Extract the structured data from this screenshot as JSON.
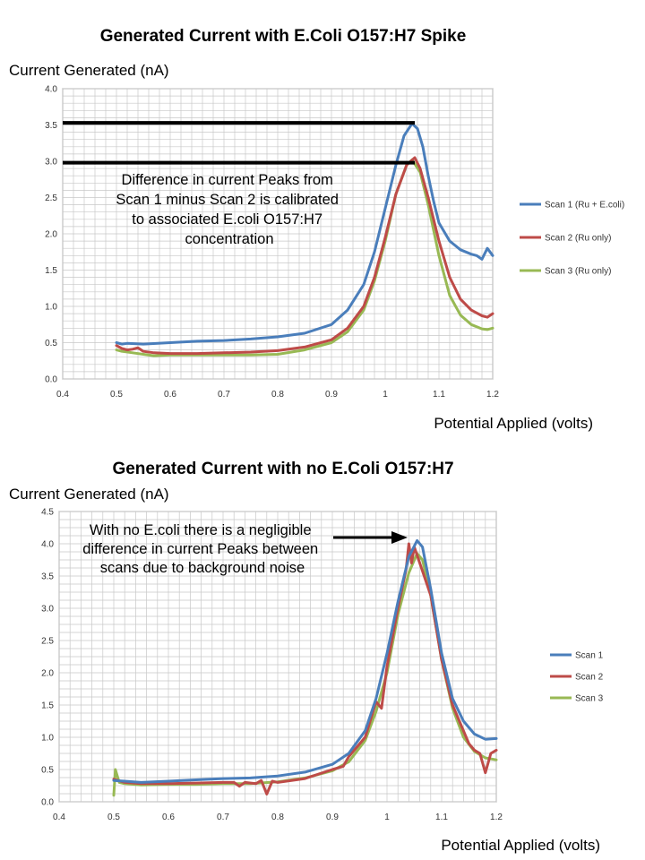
{
  "chart_data": [
    {
      "type": "line",
      "title": "Generated Current with E.Coli O157:H7 Spike",
      "ylabel": "Current Generated (nA)",
      "xlabel": "Potential Applied (volts)",
      "xlim": [
        0.4,
        1.2
      ],
      "ylim": [
        0,
        4.0
      ],
      "x_ticks": [
        "0.4",
        "0.5",
        "0.6",
        "0.7",
        "0.8",
        "0.9",
        "1",
        "1.1",
        "1.2"
      ],
      "y_ticks": [
        "0.0",
        "0.5",
        "1.0",
        "1.5",
        "2.0",
        "2.5",
        "3.0",
        "3.5",
        "4.0"
      ],
      "grid": true,
      "legend_position": "right",
      "series": [
        {
          "name": "Scan 1 (Ru + E.coli)",
          "color": "#4A7EBB",
          "points": [
            [
              0.5,
              0.5
            ],
            [
              0.51,
              0.48
            ],
            [
              0.52,
              0.49
            ],
            [
              0.55,
              0.48
            ],
            [
              0.6,
              0.5
            ],
            [
              0.65,
              0.52
            ],
            [
              0.7,
              0.53
            ],
            [
              0.75,
              0.55
            ],
            [
              0.8,
              0.58
            ],
            [
              0.85,
              0.63
            ],
            [
              0.9,
              0.75
            ],
            [
              0.93,
              0.95
            ],
            [
              0.96,
              1.3
            ],
            [
              0.98,
              1.75
            ],
            [
              1.0,
              2.35
            ],
            [
              1.02,
              2.95
            ],
            [
              1.035,
              3.35
            ],
            [
              1.05,
              3.52
            ],
            [
              1.06,
              3.45
            ],
            [
              1.07,
              3.2
            ],
            [
              1.08,
              2.8
            ],
            [
              1.09,
              2.45
            ],
            [
              1.1,
              2.15
            ],
            [
              1.12,
              1.9
            ],
            [
              1.14,
              1.78
            ],
            [
              1.16,
              1.72
            ],
            [
              1.17,
              1.7
            ],
            [
              1.18,
              1.65
            ],
            [
              1.19,
              1.8
            ],
            [
              1.2,
              1.7
            ]
          ]
        },
        {
          "name": "Scan 2 (Ru only)",
          "color": "#BE4B48",
          "points": [
            [
              0.5,
              0.46
            ],
            [
              0.51,
              0.42
            ],
            [
              0.52,
              0.4
            ],
            [
              0.53,
              0.41
            ],
            [
              0.54,
              0.43
            ],
            [
              0.55,
              0.38
            ],
            [
              0.57,
              0.36
            ],
            [
              0.6,
              0.35
            ],
            [
              0.65,
              0.35
            ],
            [
              0.7,
              0.36
            ],
            [
              0.75,
              0.37
            ],
            [
              0.8,
              0.39
            ],
            [
              0.85,
              0.44
            ],
            [
              0.9,
              0.54
            ],
            [
              0.93,
              0.7
            ],
            [
              0.96,
              1.0
            ],
            [
              0.98,
              1.4
            ],
            [
              1.0,
              1.95
            ],
            [
              1.02,
              2.55
            ],
            [
              1.04,
              2.95
            ],
            [
              1.055,
              3.05
            ],
            [
              1.065,
              2.9
            ],
            [
              1.08,
              2.5
            ],
            [
              1.1,
              1.9
            ],
            [
              1.12,
              1.4
            ],
            [
              1.14,
              1.1
            ],
            [
              1.16,
              0.95
            ],
            [
              1.18,
              0.87
            ],
            [
              1.19,
              0.85
            ],
            [
              1.2,
              0.9
            ]
          ]
        },
        {
          "name": "Scan 3 (Ru only)",
          "color": "#98B954",
          "points": [
            [
              0.5,
              0.4
            ],
            [
              0.51,
              0.38
            ],
            [
              0.53,
              0.36
            ],
            [
              0.55,
              0.34
            ],
            [
              0.57,
              0.32
            ],
            [
              0.6,
              0.33
            ],
            [
              0.65,
              0.33
            ],
            [
              0.7,
              0.33
            ],
            [
              0.75,
              0.33
            ],
            [
              0.8,
              0.34
            ],
            [
              0.85,
              0.4
            ],
            [
              0.9,
              0.5
            ],
            [
              0.93,
              0.65
            ],
            [
              0.96,
              0.95
            ],
            [
              0.98,
              1.35
            ],
            [
              1.0,
              1.9
            ],
            [
              1.02,
              2.55
            ],
            [
              1.04,
              2.95
            ],
            [
              1.05,
              3.02
            ],
            [
              1.065,
              2.85
            ],
            [
              1.08,
              2.4
            ],
            [
              1.1,
              1.7
            ],
            [
              1.12,
              1.15
            ],
            [
              1.14,
              0.88
            ],
            [
              1.16,
              0.75
            ],
            [
              1.18,
              0.69
            ],
            [
              1.19,
              0.68
            ],
            [
              1.2,
              0.7
            ]
          ]
        }
      ],
      "reference_lines": [
        {
          "y": 3.53,
          "x_end": 1.055
        },
        {
          "y": 2.98,
          "x_end": 1.055
        }
      ],
      "annotations": [
        {
          "lines": [
            "Difference in current Peaks from",
            "Scan 1 minus Scan 2 is calibrated",
            "to associated E.coli O157:H7",
            "concentration"
          ]
        }
      ]
    },
    {
      "type": "line",
      "title": "Generated Current with no E.Coli O157:H7",
      "ylabel": "Current Generated (nA)",
      "xlabel": "Potential Applied (volts)",
      "xlim": [
        0.4,
        1.2
      ],
      "ylim": [
        0,
        4.5
      ],
      "x_ticks": [
        "0.4",
        "0.5",
        "0.6",
        "0.7",
        "0.8",
        "0.9",
        "1",
        "1.1",
        "1.2"
      ],
      "y_ticks": [
        "0.0",
        "0.5",
        "1.0",
        "1.5",
        "2.0",
        "2.5",
        "3.0",
        "3.5",
        "4.0",
        "4.5"
      ],
      "grid": true,
      "legend_position": "right",
      "series": [
        {
          "name": "Scan 1",
          "color": "#4A7EBB",
          "points": [
            [
              0.5,
              0.33
            ],
            [
              0.52,
              0.32
            ],
            [
              0.55,
              0.3
            ],
            [
              0.6,
              0.32
            ],
            [
              0.65,
              0.34
            ],
            [
              0.7,
              0.36
            ],
            [
              0.75,
              0.37
            ],
            [
              0.8,
              0.4
            ],
            [
              0.85,
              0.46
            ],
            [
              0.9,
              0.58
            ],
            [
              0.93,
              0.75
            ],
            [
              0.96,
              1.1
            ],
            [
              0.98,
              1.6
            ],
            [
              1.0,
              2.3
            ],
            [
              1.02,
              3.1
            ],
            [
              1.04,
              3.8
            ],
            [
              1.055,
              4.05
            ],
            [
              1.065,
              3.95
            ],
            [
              1.08,
              3.3
            ],
            [
              1.1,
              2.3
            ],
            [
              1.12,
              1.6
            ],
            [
              1.14,
              1.25
            ],
            [
              1.16,
              1.05
            ],
            [
              1.18,
              0.97
            ],
            [
              1.2,
              0.98
            ]
          ]
        },
        {
          "name": "Scan 2",
          "color": "#BE4B48",
          "points": [
            [
              0.5,
              0.35
            ],
            [
              0.52,
              0.3
            ],
            [
              0.55,
              0.28
            ],
            [
              0.6,
              0.28
            ],
            [
              0.65,
              0.29
            ],
            [
              0.7,
              0.3
            ],
            [
              0.72,
              0.3
            ],
            [
              0.73,
              0.24
            ],
            [
              0.74,
              0.3
            ],
            [
              0.76,
              0.28
            ],
            [
              0.77,
              0.33
            ],
            [
              0.78,
              0.12
            ],
            [
              0.79,
              0.32
            ],
            [
              0.8,
              0.3
            ],
            [
              0.85,
              0.36
            ],
            [
              0.9,
              0.5
            ],
            [
              0.92,
              0.55
            ],
            [
              0.93,
              0.7
            ],
            [
              0.96,
              1.0
            ],
            [
              0.98,
              1.55
            ],
            [
              0.99,
              1.45
            ],
            [
              1.0,
              2.1
            ],
            [
              1.02,
              3.0
            ],
            [
              1.035,
              3.6
            ],
            [
              1.04,
              4.0
            ],
            [
              1.045,
              3.7
            ],
            [
              1.05,
              3.95
            ],
            [
              1.06,
              3.7
            ],
            [
              1.08,
              3.2
            ],
            [
              1.1,
              2.2
            ],
            [
              1.12,
              1.5
            ],
            [
              1.14,
              1.1
            ],
            [
              1.15,
              0.9
            ],
            [
              1.16,
              0.8
            ],
            [
              1.17,
              0.75
            ],
            [
              1.18,
              0.45
            ],
            [
              1.19,
              0.75
            ],
            [
              1.2,
              0.8
            ]
          ]
        },
        {
          "name": "Scan 3",
          "color": "#98B954",
          "points": [
            [
              0.5,
              0.1
            ],
            [
              0.503,
              0.5
            ],
            [
              0.51,
              0.3
            ],
            [
              0.52,
              0.28
            ],
            [
              0.55,
              0.26
            ],
            [
              0.6,
              0.27
            ],
            [
              0.65,
              0.27
            ],
            [
              0.7,
              0.28
            ],
            [
              0.75,
              0.28
            ],
            [
              0.8,
              0.31
            ],
            [
              0.85,
              0.37
            ],
            [
              0.9,
              0.48
            ],
            [
              0.93,
              0.62
            ],
            [
              0.96,
              0.95
            ],
            [
              0.98,
              1.4
            ],
            [
              1.0,
              2.0
            ],
            [
              1.02,
              2.9
            ],
            [
              1.04,
              3.55
            ],
            [
              1.055,
              3.85
            ],
            [
              1.065,
              3.75
            ],
            [
              1.08,
              3.2
            ],
            [
              1.1,
              2.2
            ],
            [
              1.12,
              1.45
            ],
            [
              1.14,
              1.0
            ],
            [
              1.16,
              0.78
            ],
            [
              1.18,
              0.68
            ],
            [
              1.2,
              0.65
            ]
          ]
        }
      ],
      "annotations": [
        {
          "lines": [
            "With no E.coli there is a negligible",
            "difference in current Peaks between",
            "scans due to background noise"
          ]
        }
      ]
    }
  ]
}
